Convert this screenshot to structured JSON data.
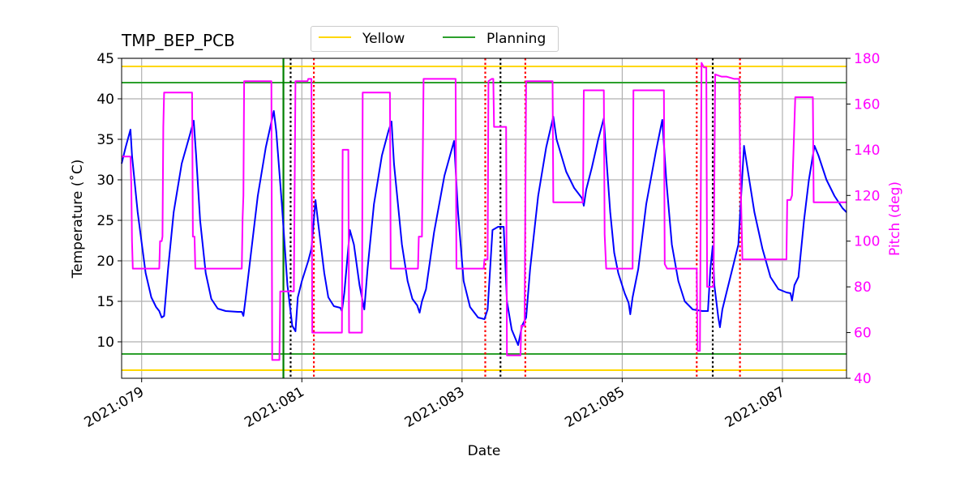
{
  "chart_data": {
    "type": "line",
    "title": "TMP_BEP_PCB",
    "xlabel": "Date",
    "ylabel": "Temperature ($^\\circ$C)",
    "ylabel_display": "Temperature (˚C)",
    "y2label": "Pitch (deg)",
    "xlim": [
      78.75,
      87.8
    ],
    "ylim": [
      5.5,
      45
    ],
    "y2lim": [
      40,
      180
    ],
    "x_ticks": [
      79,
      81,
      83,
      85,
      87
    ],
    "x_tick_labels": [
      "2021:079",
      "2021:081",
      "2021:083",
      "2021:085",
      "2021:087"
    ],
    "y_ticks": [
      10,
      15,
      20,
      25,
      30,
      35,
      40,
      45
    ],
    "y2_ticks": [
      40,
      60,
      80,
      100,
      120,
      140,
      160,
      180
    ],
    "grid": true,
    "legend": {
      "position": "top-center",
      "entries": [
        {
          "name": "Yellow",
          "color": "#ffd700"
        },
        {
          "name": "Planning",
          "color": "#2ca02c"
        }
      ]
    },
    "limits": {
      "yellow": [
        6.5,
        44
      ],
      "planning": [
        8.5,
        42
      ]
    },
    "colors": {
      "temperature": "#0000ff",
      "pitch": "#ff00ff",
      "yellow": "#ffd700",
      "planning": "#2ca02c",
      "black_vline": "#000000",
      "red_vline": "#ff0000",
      "green_vline": "#008000",
      "grid": "#b0b0b0"
    },
    "now_line_x": 80.77,
    "black_dotted_lines_x": [
      80.86,
      83.48,
      86.13
    ],
    "red_dotted_lines_x": [
      81.15,
      83.29,
      83.79,
      85.93,
      86.47
    ],
    "series": [
      {
        "name": "Temperature",
        "axis": "left",
        "points": [
          [
            78.75,
            32
          ],
          [
            78.8,
            34
          ],
          [
            78.86,
            36.2
          ],
          [
            78.88,
            33
          ],
          [
            78.95,
            26
          ],
          [
            79.05,
            18.5
          ],
          [
            79.12,
            15.5
          ],
          [
            79.18,
            14.3
          ],
          [
            79.22,
            13.8
          ],
          [
            79.25,
            13
          ],
          [
            79.28,
            13.2
          ],
          [
            79.33,
            19
          ],
          [
            79.4,
            26
          ],
          [
            79.5,
            32
          ],
          [
            79.6,
            35.5
          ],
          [
            79.65,
            37.3
          ],
          [
            79.68,
            33
          ],
          [
            79.73,
            25
          ],
          [
            79.8,
            18.5
          ],
          [
            79.87,
            15.3
          ],
          [
            79.95,
            14.1
          ],
          [
            80.05,
            13.8
          ],
          [
            80.2,
            13.7
          ],
          [
            80.25,
            13.7
          ],
          [
            80.27,
            13.2
          ],
          [
            80.3,
            15.5
          ],
          [
            80.45,
            28
          ],
          [
            80.55,
            34
          ],
          [
            80.65,
            38.5
          ],
          [
            80.68,
            36
          ],
          [
            80.75,
            27
          ],
          [
            80.82,
            17
          ],
          [
            80.88,
            12
          ],
          [
            80.92,
            11.3
          ],
          [
            80.95,
            15.5
          ],
          [
            81.0,
            17.5
          ],
          [
            81.08,
            20
          ],
          [
            81.12,
            21.5
          ],
          [
            81.17,
            27.5
          ],
          [
            81.2,
            25
          ],
          [
            81.28,
            18.5
          ],
          [
            81.33,
            15.5
          ],
          [
            81.4,
            14.4
          ],
          [
            81.48,
            14.2
          ],
          [
            81.5,
            13.8
          ],
          [
            81.53,
            16
          ],
          [
            81.6,
            23.8
          ],
          [
            81.65,
            22
          ],
          [
            81.72,
            17
          ],
          [
            81.77,
            14.5
          ],
          [
            81.78,
            14
          ],
          [
            81.82,
            19
          ],
          [
            81.9,
            27
          ],
          [
            82.0,
            33
          ],
          [
            82.08,
            36
          ],
          [
            82.12,
            37.2
          ],
          [
            82.15,
            32
          ],
          [
            82.2,
            27
          ],
          [
            82.25,
            22
          ],
          [
            82.32,
            17.5
          ],
          [
            82.38,
            15.3
          ],
          [
            82.44,
            14.5
          ],
          [
            82.47,
            13.6
          ],
          [
            82.5,
            15
          ],
          [
            82.55,
            16.5
          ],
          [
            82.65,
            23.5
          ],
          [
            82.78,
            30.5
          ],
          [
            82.9,
            34.8
          ],
          [
            82.95,
            26
          ],
          [
            83.02,
            17.5
          ],
          [
            83.1,
            14.3
          ],
          [
            83.2,
            13
          ],
          [
            83.28,
            12.8
          ],
          [
            83.32,
            14
          ],
          [
            83.38,
            23.8
          ],
          [
            83.45,
            24.2
          ],
          [
            83.52,
            24.2
          ],
          [
            83.56,
            15
          ],
          [
            83.62,
            11.5
          ],
          [
            83.7,
            9.6
          ],
          [
            83.75,
            12
          ],
          [
            83.8,
            13
          ],
          [
            83.85,
            19
          ],
          [
            83.95,
            28
          ],
          [
            84.05,
            34
          ],
          [
            84.14,
            37.8
          ],
          [
            84.18,
            35
          ],
          [
            84.3,
            31
          ],
          [
            84.4,
            29
          ],
          [
            84.5,
            27.7
          ],
          [
            84.52,
            26.8
          ],
          [
            84.55,
            28.8
          ],
          [
            84.62,
            31.5
          ],
          [
            84.7,
            35
          ],
          [
            84.77,
            37.6
          ],
          [
            84.8,
            33
          ],
          [
            84.85,
            26
          ],
          [
            84.9,
            21
          ],
          [
            84.95,
            18.5
          ],
          [
            85.03,
            16
          ],
          [
            85.08,
            14.8
          ],
          [
            85.1,
            13.4
          ],
          [
            85.13,
            15.5
          ],
          [
            85.2,
            19
          ],
          [
            85.3,
            27
          ],
          [
            85.42,
            33.5
          ],
          [
            85.5,
            37.4
          ],
          [
            85.55,
            30
          ],
          [
            85.62,
            22
          ],
          [
            85.7,
            17.5
          ],
          [
            85.78,
            15
          ],
          [
            85.88,
            14
          ],
          [
            86.0,
            13.8
          ],
          [
            86.07,
            13.8
          ],
          [
            86.1,
            19
          ],
          [
            86.13,
            21.8
          ],
          [
            86.15,
            17
          ],
          [
            86.2,
            13
          ],
          [
            86.22,
            11.8
          ],
          [
            86.25,
            14
          ],
          [
            86.3,
            16
          ],
          [
            86.4,
            20
          ],
          [
            86.45,
            22
          ],
          [
            86.52,
            34.2
          ],
          [
            86.57,
            31
          ],
          [
            86.65,
            26
          ],
          [
            86.75,
            21.5
          ],
          [
            86.85,
            18
          ],
          [
            86.95,
            16.5
          ],
          [
            87.05,
            16.1
          ],
          [
            87.1,
            16
          ],
          [
            87.12,
            15.1
          ],
          [
            87.15,
            17
          ],
          [
            87.2,
            18
          ],
          [
            87.27,
            25
          ],
          [
            87.33,
            30
          ],
          [
            87.4,
            34.2
          ],
          [
            87.45,
            33
          ],
          [
            87.55,
            30
          ],
          [
            87.65,
            28
          ],
          [
            87.75,
            26.5
          ],
          [
            87.8,
            26
          ]
        ]
      },
      {
        "name": "Pitch",
        "axis": "right",
        "points": [
          [
            78.75,
            137
          ],
          [
            78.86,
            137
          ],
          [
            78.87,
            125
          ],
          [
            78.88,
            100
          ],
          [
            78.89,
            88
          ],
          [
            79.22,
            88
          ],
          [
            79.23,
            100
          ],
          [
            79.25,
            100
          ],
          [
            79.26,
            102
          ],
          [
            79.27,
            150
          ],
          [
            79.28,
            165
          ],
          [
            79.63,
            165
          ],
          [
            79.64,
            102
          ],
          [
            79.66,
            102
          ],
          [
            79.67,
            88
          ],
          [
            80.25,
            88
          ],
          [
            80.26,
            110
          ],
          [
            80.27,
            120
          ],
          [
            80.28,
            170
          ],
          [
            80.62,
            170
          ],
          [
            80.63,
            48
          ],
          [
            80.72,
            48
          ],
          [
            80.73,
            78
          ],
          [
            80.85,
            78
          ],
          [
            80.86,
            78
          ],
          [
            80.9,
            78
          ],
          [
            80.92,
            170
          ],
          [
            81.07,
            170
          ],
          [
            81.08,
            171
          ],
          [
            81.12,
            171
          ],
          [
            81.13,
            60
          ],
          [
            81.5,
            60
          ],
          [
            81.51,
            140
          ],
          [
            81.58,
            140
          ],
          [
            81.59,
            60
          ],
          [
            81.75,
            60
          ],
          [
            81.76,
            165
          ],
          [
            82.1,
            165
          ],
          [
            82.11,
            88
          ],
          [
            82.45,
            88
          ],
          [
            82.46,
            102
          ],
          [
            82.5,
            102
          ],
          [
            82.52,
            171
          ],
          [
            82.92,
            171
          ],
          [
            82.93,
            88
          ],
          [
            83.27,
            88
          ],
          [
            83.28,
            92
          ],
          [
            83.32,
            92
          ],
          [
            83.33,
            170
          ],
          [
            83.37,
            171
          ],
          [
            83.39,
            171
          ],
          [
            83.4,
            150
          ],
          [
            83.55,
            150
          ],
          [
            83.56,
            50
          ],
          [
            83.73,
            50
          ],
          [
            83.74,
            63
          ],
          [
            83.78,
            63
          ],
          [
            83.8,
            170
          ],
          [
            84.13,
            170
          ],
          [
            84.14,
            117
          ],
          [
            84.51,
            117
          ],
          [
            84.52,
            166
          ],
          [
            84.77,
            166
          ],
          [
            84.78,
            103
          ],
          [
            84.8,
            88
          ],
          [
            85.13,
            88
          ],
          [
            85.14,
            166
          ],
          [
            85.52,
            166
          ],
          [
            85.53,
            90
          ],
          [
            85.56,
            88
          ],
          [
            85.93,
            88
          ],
          [
            85.94,
            52
          ],
          [
            85.97,
            52
          ],
          [
            85.99,
            178
          ],
          [
            86.02,
            176
          ],
          [
            86.05,
            176
          ],
          [
            86.06,
            80
          ],
          [
            86.14,
            80
          ],
          [
            86.16,
            173
          ],
          [
            86.24,
            172
          ],
          [
            86.3,
            172
          ],
          [
            86.4,
            171
          ],
          [
            86.46,
            171
          ],
          [
            86.47,
            140
          ],
          [
            86.5,
            92
          ],
          [
            87.05,
            92
          ],
          [
            87.06,
            118
          ],
          [
            87.1,
            118
          ],
          [
            87.12,
            120
          ],
          [
            87.16,
            163
          ],
          [
            87.38,
            163
          ],
          [
            87.39,
            117
          ],
          [
            87.8,
            117
          ]
        ]
      }
    ]
  }
}
